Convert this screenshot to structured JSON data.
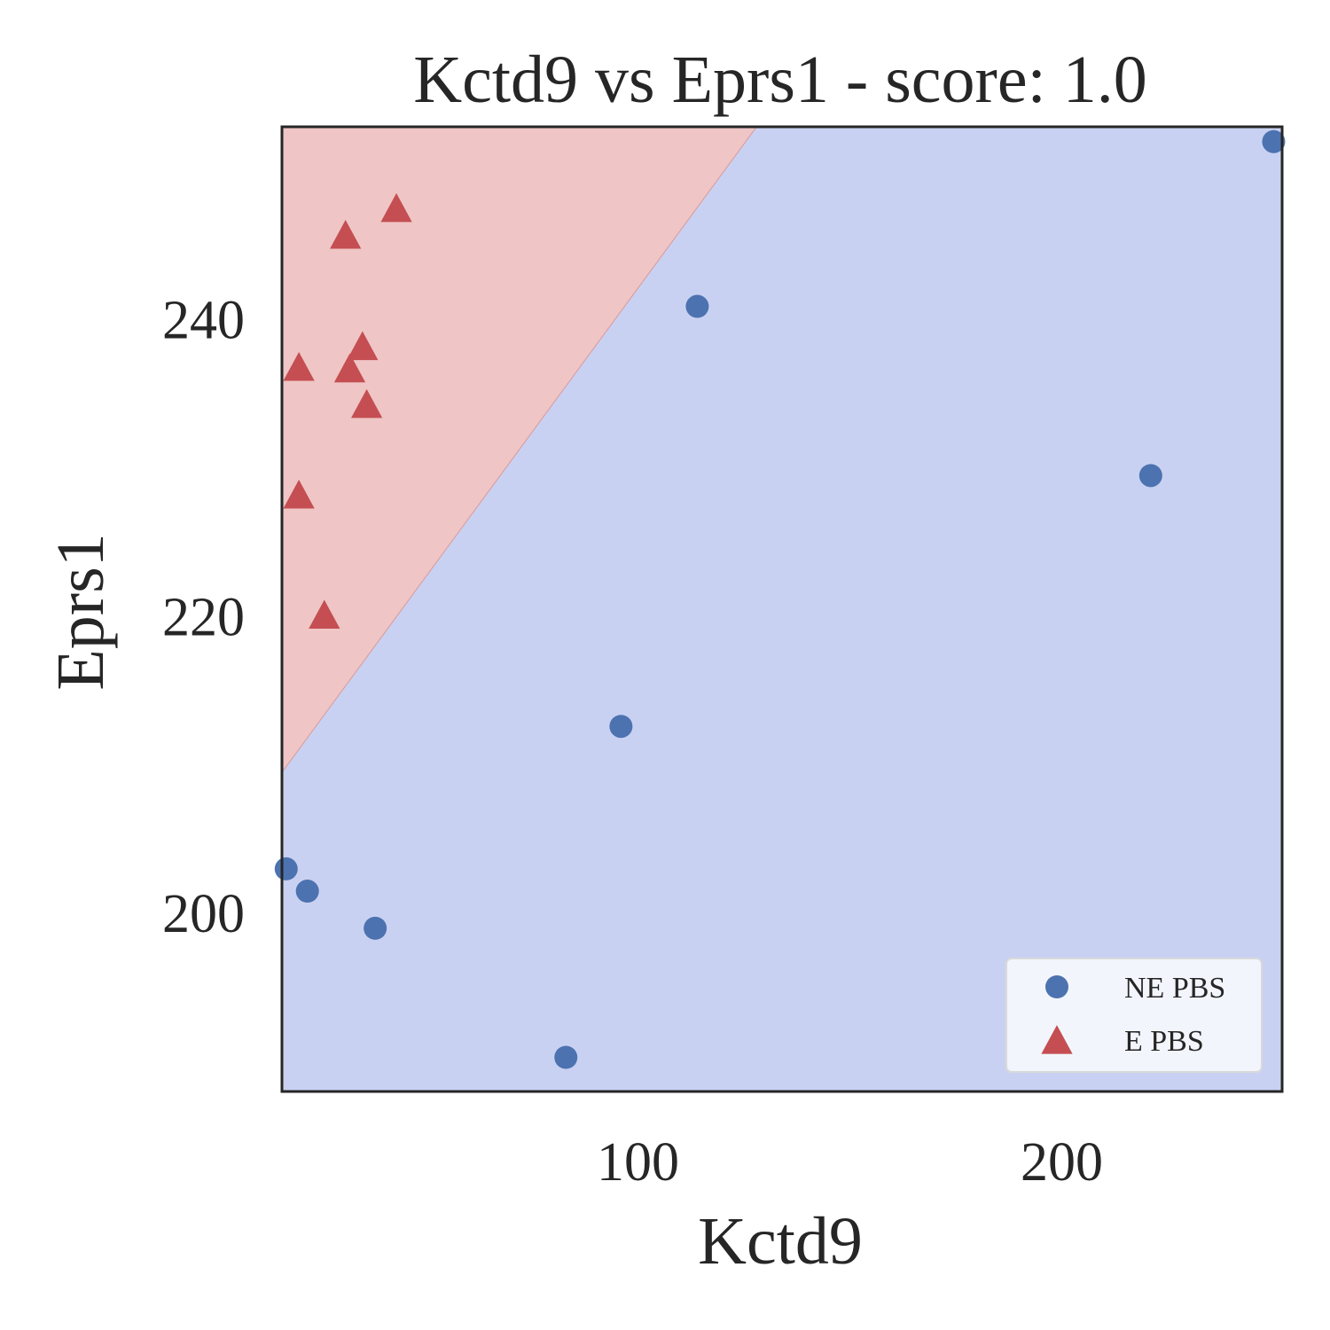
{
  "chart_data": {
    "type": "scatter",
    "title": "Kctd9 vs Eprs1 - score: 1.0",
    "xlabel": "Kctd9",
    "ylabel": "Eprs1",
    "xlim": [
      16,
      252
    ],
    "ylim": [
      188,
      253
    ],
    "xticks": [
      100,
      200
    ],
    "yticks": [
      200,
      220,
      240
    ],
    "grid": false,
    "legend_position": "bottom-right",
    "decision_boundary": {
      "x": [
        16,
        128
      ],
      "y": [
        209.5,
        253
      ],
      "upper_region_color": "#efc5c5",
      "lower_region_color": "#c9d1f2"
    },
    "series": [
      {
        "name": "NE PBS",
        "marker": "circle",
        "color": "#4c72b0",
        "points": [
          {
            "x": 17,
            "y": 203.0
          },
          {
            "x": 22,
            "y": 201.5
          },
          {
            "x": 38,
            "y": 199.0
          },
          {
            "x": 83,
            "y": 190.3
          },
          {
            "x": 96,
            "y": 212.6
          },
          {
            "x": 114,
            "y": 240.9
          },
          {
            "x": 221,
            "y": 229.5
          },
          {
            "x": 250,
            "y": 252.0
          }
        ]
      },
      {
        "name": "E PBS",
        "marker": "triangle",
        "color": "#c44e52",
        "points": [
          {
            "x": 20,
            "y": 236.7
          },
          {
            "x": 20,
            "y": 228.1
          },
          {
            "x": 26,
            "y": 220.0
          },
          {
            "x": 31,
            "y": 245.6
          },
          {
            "x": 32,
            "y": 236.6
          },
          {
            "x": 35,
            "y": 238.1
          },
          {
            "x": 36,
            "y": 234.2
          },
          {
            "x": 43,
            "y": 247.4
          }
        ]
      }
    ]
  }
}
